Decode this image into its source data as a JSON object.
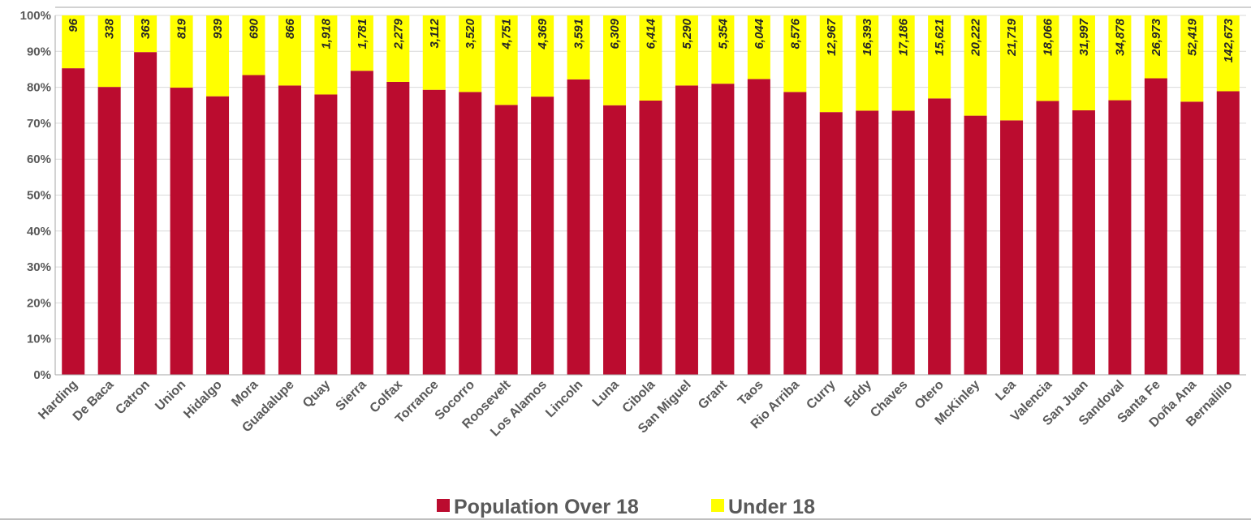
{
  "chart_data": {
    "type": "bar",
    "stacked": true,
    "normalized": true,
    "categories": [
      "Harding",
      "De Baca",
      "Catron",
      "Union",
      "Hidalgo",
      "Mora",
      "Guadalupe",
      "Quay",
      "Sierra",
      "Colfax",
      "Torrance",
      "Socorro",
      "Roosevelt",
      "Los Alamos",
      "Lincoln",
      "Luna",
      "Cibola",
      "San Miguel",
      "Grant",
      "Taos",
      "Rio Arriba",
      "Curry",
      "Eddy",
      "Chaves",
      "Otero",
      "McKinley",
      "Lea",
      "Valencia",
      "San Juan",
      "Sandoval",
      "Santa Fe",
      "Doña Ana",
      "Bernalillo"
    ],
    "series": [
      {
        "name": "Population Over 18",
        "color": "#bb0c2f",
        "percent": [
          85.3,
          80.1,
          89.8,
          79.9,
          77.5,
          83.4,
          80.5,
          78.0,
          84.6,
          81.5,
          79.3,
          78.7,
          75.1,
          77.4,
          82.2,
          75.0,
          76.3,
          80.5,
          81.0,
          82.3,
          78.7,
          73.1,
          73.5,
          73.5,
          76.9,
          72.1,
          70.8,
          76.2,
          73.6,
          76.4,
          82.5,
          76.0,
          78.9
        ]
      },
      {
        "name": "Under 18",
        "color": "#ffff00",
        "values": [
          96,
          338,
          363,
          819,
          939,
          690,
          866,
          1918,
          1781,
          2279,
          3112,
          3520,
          4751,
          4369,
          3591,
          6309,
          6414,
          5290,
          5354,
          6044,
          8576,
          12967,
          16393,
          17186,
          15621,
          20222,
          21719,
          18066,
          31997,
          34878,
          26973,
          52419,
          142673
        ],
        "labels": [
          "96",
          "338",
          "363",
          "819",
          "939",
          "690",
          "866",
          "1,918",
          "1,781",
          "2,279",
          "3,112",
          "3,520",
          "4,751",
          "4,369",
          "3,591",
          "6,309",
          "6,414",
          "5,290",
          "5,354",
          "6,044",
          "8,576",
          "12,967",
          "16,393",
          "17,186",
          "15,621",
          "20,222",
          "21,719",
          "18,066",
          "31,997",
          "34,878",
          "26,973",
          "52,419",
          "142,673"
        ]
      }
    ],
    "y_ticks": [
      "0%",
      "10%",
      "20%",
      "30%",
      "40%",
      "50%",
      "60%",
      "70%",
      "80%",
      "90%",
      "100%"
    ],
    "ylim": [
      0,
      100
    ],
    "grid": true,
    "legend": {
      "position": "bottom",
      "entries": [
        "Population Over 18",
        "Under 18"
      ]
    },
    "title": "",
    "xlabel": "",
    "ylabel": ""
  }
}
